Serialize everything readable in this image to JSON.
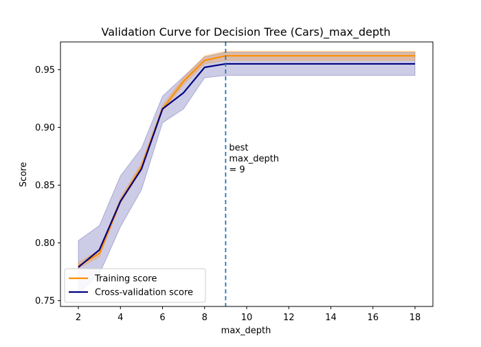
{
  "chart_data": {
    "type": "line",
    "title": "Validation Curve for Decision Tree (Cars)_max_depth",
    "xlabel": "max_depth",
    "ylabel": "Score",
    "xlim": [
      1.15,
      18.85
    ],
    "ylim": [
      0.745,
      0.974
    ],
    "x_ticks": [
      2,
      4,
      6,
      8,
      10,
      12,
      14,
      16,
      18
    ],
    "x_tick_labels": [
      "2",
      "4",
      "6",
      "8",
      "10",
      "12",
      "14",
      "16",
      "18"
    ],
    "y_ticks": [
      0.75,
      0.8,
      0.85,
      0.9,
      0.95
    ],
    "y_tick_labels": [
      "0.75",
      "0.80",
      "0.85",
      "0.90",
      "0.95"
    ],
    "grid": false,
    "legend_position": "lower-left",
    "x": [
      2,
      3,
      4,
      5,
      6,
      7,
      8,
      9,
      10,
      11,
      12,
      13,
      14,
      15,
      16,
      17,
      18
    ],
    "series": [
      {
        "name": "Training score",
        "color": "#ff8c00",
        "values": [
          0.78,
          0.791,
          0.836,
          0.866,
          0.916,
          0.94,
          0.958,
          0.962,
          0.962,
          0.962,
          0.962,
          0.962,
          0.962,
          0.962,
          0.962,
          0.962,
          0.962
        ],
        "band_lower": [
          0.778,
          0.788,
          0.834,
          0.863,
          0.914,
          0.937,
          0.955,
          0.958,
          0.958,
          0.958,
          0.958,
          0.958,
          0.958,
          0.958,
          0.958,
          0.958,
          0.958
        ],
        "band_upper": [
          0.783,
          0.794,
          0.839,
          0.869,
          0.919,
          0.943,
          0.962,
          0.966,
          0.966,
          0.966,
          0.966,
          0.966,
          0.966,
          0.966,
          0.966,
          0.966,
          0.966
        ]
      },
      {
        "name": "Cross-validation score",
        "color": "#000080",
        "values": [
          0.779,
          0.794,
          0.836,
          0.864,
          0.916,
          0.93,
          0.952,
          0.955,
          0.955,
          0.955,
          0.955,
          0.955,
          0.955,
          0.955,
          0.955,
          0.955,
          0.955
        ],
        "band_lower": [
          0.756,
          0.773,
          0.814,
          0.846,
          0.904,
          0.916,
          0.943,
          0.945,
          0.945,
          0.945,
          0.945,
          0.945,
          0.945,
          0.945,
          0.945,
          0.945,
          0.945
        ],
        "band_upper": [
          0.802,
          0.815,
          0.858,
          0.882,
          0.927,
          0.944,
          0.961,
          0.965,
          0.965,
          0.965,
          0.965,
          0.965,
          0.965,
          0.965,
          0.965,
          0.965,
          0.965
        ]
      }
    ],
    "vline": {
      "x": 9,
      "color": "#1f77b4",
      "style": "dashed",
      "annotation": [
        "best",
        "max_depth",
        "= 9"
      ]
    }
  }
}
